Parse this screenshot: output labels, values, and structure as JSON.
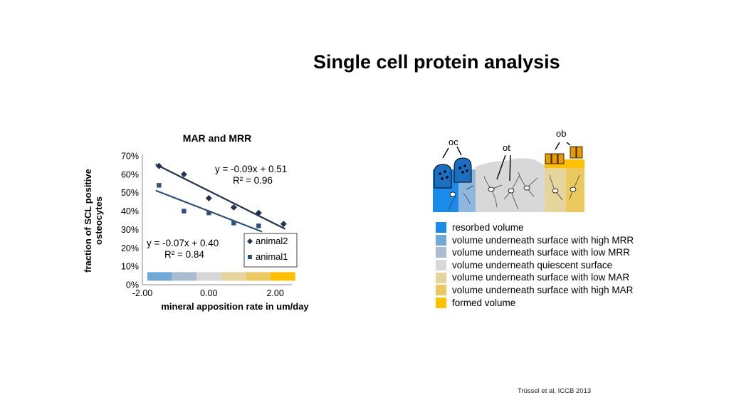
{
  "slide": {
    "title": "Single cell protein analysis",
    "citation": "Trüssel et al, ICCB 2013"
  },
  "chart_data": {
    "type": "scatter",
    "title": "MAR and MRR",
    "xlabel": "mineral apposition rate in um/day",
    "ylabel": "fraction of SCL positive osteocytes",
    "xlim": [
      -2.0,
      2.5
    ],
    "ylim": [
      0,
      0.7
    ],
    "x_ticks": [
      "-2.00",
      "0.00",
      "2.00"
    ],
    "y_ticks": [
      "0%",
      "10%",
      "20%",
      "30%",
      "40%",
      "50%",
      "60%",
      "70%"
    ],
    "grid": false,
    "legend_position": "right",
    "series": [
      {
        "name": "animal2",
        "marker": "diamond",
        "color": "#1f3552",
        "x": [
          -1.5,
          -0.75,
          0.0,
          0.75,
          1.5,
          2.25
        ],
        "y": [
          0.645,
          0.6,
          0.47,
          0.42,
          0.39,
          0.33
        ],
        "trendline": {
          "slope": -0.09,
          "intercept": 0.51,
          "x_range": [
            -1.6,
            2.3
          ]
        },
        "equation": "y = -0.09x + 0.51",
        "r2": "R² = 0.96"
      },
      {
        "name": "animal1",
        "marker": "square",
        "color": "#2e527e",
        "x": [
          -1.5,
          -0.75,
          0.0,
          0.75,
          1.5
        ],
        "y": [
          0.54,
          0.4,
          0.39,
          0.335,
          0.32
        ],
        "trendline": {
          "slope": -0.07,
          "intercept": 0.4,
          "x_range": [
            -1.6,
            1.6
          ]
        },
        "equation": "y = -0.07x + 0.40",
        "r2": "R² = 0.84"
      }
    ],
    "color_band": {
      "y": 0.045,
      "x_start": -1.85,
      "x_end": 2.6,
      "colors": [
        "#6ea9d8",
        "#a9bcd0",
        "#d6d6d6",
        "#e6d49d",
        "#ecc95f",
        "#ffc000"
      ]
    }
  },
  "schematic": {
    "labels": [
      "oc",
      "ot",
      "ob"
    ]
  },
  "legend": {
    "items": [
      {
        "label": "resorbed volume",
        "color": "#1a8be8"
      },
      {
        "label": "volume underneath surface with high MRR",
        "color": "#6ea9d8"
      },
      {
        "label": "volume underneath surface with low MRR",
        "color": "#a9bcd0"
      },
      {
        "label": "volume underneath quiescent surface",
        "color": "#d8d8d8"
      },
      {
        "label": "volume underneath surface with low MAR",
        "color": "#e6d49d"
      },
      {
        "label": "volume underneath surface with high MAR",
        "color": "#ecc95f"
      },
      {
        "label": "formed volume",
        "color": "#ffc000"
      }
    ]
  }
}
